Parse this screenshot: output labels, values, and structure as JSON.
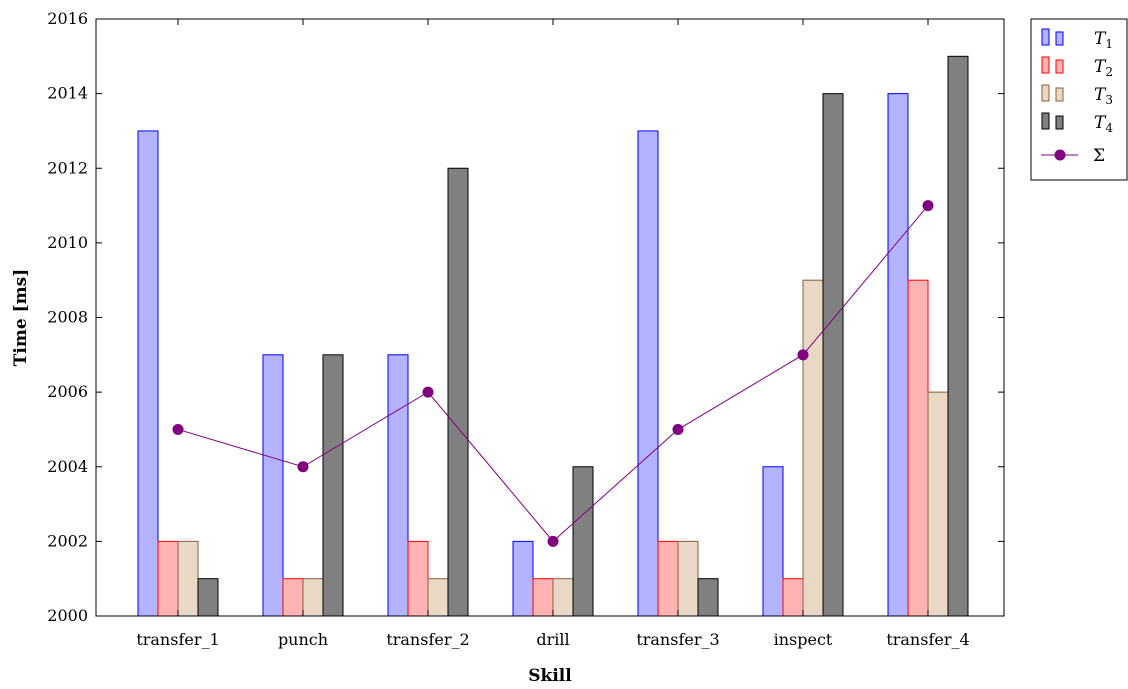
{
  "chart_data": {
    "type": "bar",
    "title": "",
    "xlabel": "Skill",
    "ylabel": "Time [ms]",
    "ylim": [
      2000,
      2016
    ],
    "yticks": [
      2000,
      2002,
      2004,
      2006,
      2008,
      2010,
      2012,
      2014,
      2016
    ],
    "categories": [
      "transfer_1",
      "punch",
      "transfer_2",
      "drill",
      "transfer_3",
      "inspect",
      "transfer_4"
    ],
    "series": [
      {
        "name": "T",
        "sub": "1",
        "fill": "#b3b3ff",
        "stroke": "#0000ff",
        "values": [
          2013,
          2007,
          2007,
          2002,
          2013,
          2004,
          2014
        ]
      },
      {
        "name": "T",
        "sub": "2",
        "fill": "#ffb3b3",
        "stroke": "#ff0000",
        "values": [
          2002,
          2001,
          2002,
          2001,
          2002,
          2001,
          2009
        ]
      },
      {
        "name": "T",
        "sub": "3",
        "fill": "#ead8c7",
        "stroke": "#8b5e3c",
        "values": [
          2002,
          2001,
          2001,
          2001,
          2002,
          2009,
          2006
        ]
      },
      {
        "name": "T",
        "sub": "4",
        "fill": "#808080",
        "stroke": "#000000",
        "values": [
          2001,
          2007,
          2012,
          2004,
          2001,
          2014,
          2015
        ]
      }
    ],
    "line_series": {
      "name": "Σ",
      "color": "#800080",
      "values": [
        2005,
        2004,
        2006,
        2002,
        2005,
        2007,
        2011
      ]
    },
    "grid": false,
    "legend_position": "outside-top-right"
  }
}
